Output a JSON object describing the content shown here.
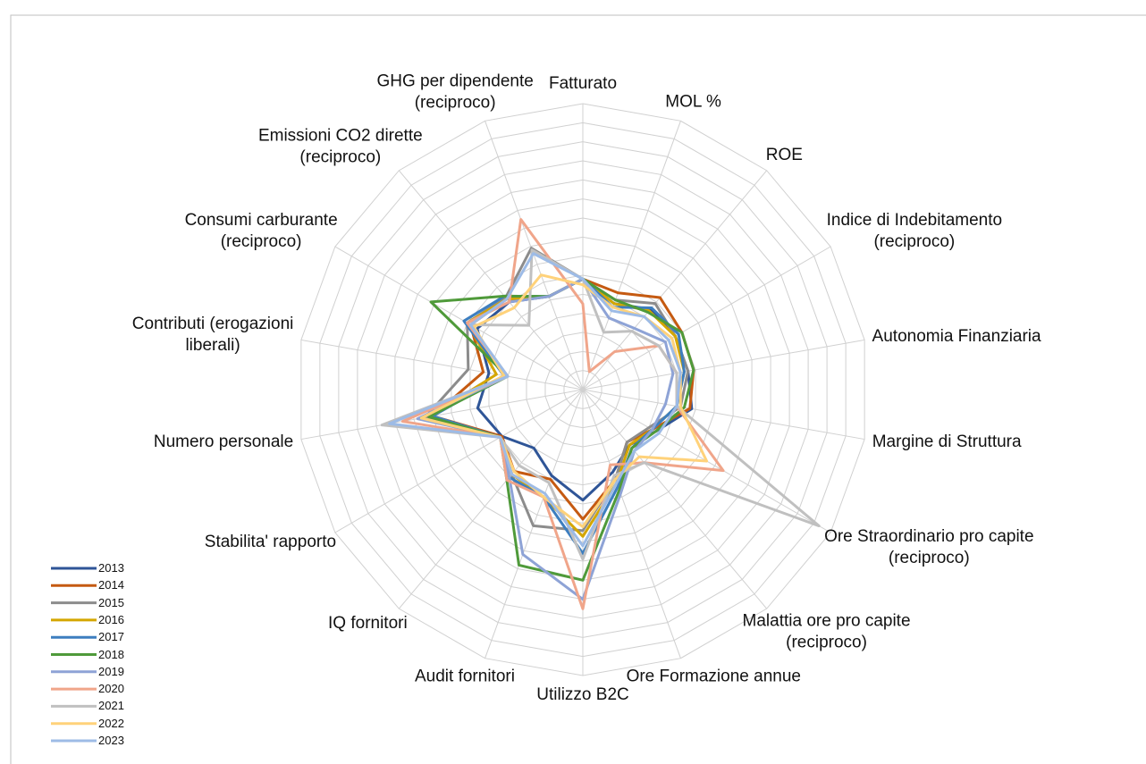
{
  "chart_data": {
    "type": "radar",
    "categories": [
      "Fatturato",
      "MOL %",
      "ROE",
      "Indice di Indebitamento\n(reciproco)",
      "Autonomia Finanziaria",
      "Margine di Struttura",
      "Ore Straordinario pro capite\n(reciproco)",
      "Malattia ore pro capite\n(reciproco)",
      "Ore Formazione annue",
      "Utilizzo B2C",
      "Audit fornitori",
      "IQ fornitori",
      "Stabilita' rapporto",
      "Numero personale",
      "Contributi (erogazioni\nliberali)",
      "Consumi carburante\n(reciproco)",
      "Emissioni CO2 dirette\n(reciproco)",
      "GHG per dipendente\n(reciproco)"
    ],
    "ylim": [
      0,
      15
    ],
    "yticks": [
      1,
      2,
      3,
      4,
      5,
      6,
      7,
      8,
      9,
      10,
      11,
      12,
      13,
      14,
      15
    ],
    "grid": true,
    "legend": "bottom-left",
    "series": [
      {
        "name": "2013",
        "color": "#2f5597",
        "values": [
          5.8,
          4.8,
          5.5,
          5.6,
          5.6,
          5.8,
          4.4,
          3.8,
          4.6,
          5.8,
          4.8,
          4.0,
          4.9,
          5.6,
          5.0,
          6.4,
          6.0,
          5.2
        ]
      },
      {
        "name": "2014",
        "color": "#c55a11",
        "values": [
          5.8,
          5.4,
          6.3,
          6.0,
          5.9,
          5.7,
          4.2,
          3.6,
          5.0,
          6.8,
          5.0,
          5.6,
          4.9,
          8.0,
          5.3,
          6.8,
          6.2,
          5.2
        ]
      },
      {
        "name": "2015",
        "color": "#8c8c8c",
        "values": [
          5.8,
          5.0,
          5.9,
          5.6,
          5.6,
          5.2,
          4.0,
          3.6,
          5.0,
          7.4,
          7.6,
          5.8,
          5.0,
          8.4,
          6.1,
          7.0,
          6.3,
          7.9
        ]
      },
      {
        "name": "2016",
        "color": "#d4a600",
        "values": [
          5.8,
          4.8,
          5.4,
          5.6,
          5.4,
          5.0,
          4.2,
          3.8,
          5.2,
          7.7,
          6.0,
          5.8,
          5.0,
          8.2,
          4.6,
          7.0,
          6.2,
          5.2
        ]
      },
      {
        "name": "2017",
        "color": "#3d7ebf",
        "values": [
          5.8,
          4.6,
          5.6,
          5.8,
          5.4,
          5.0,
          4.2,
          4.0,
          5.4,
          8.6,
          6.0,
          6.0,
          5.0,
          8.0,
          4.2,
          7.2,
          6.4,
          5.2
        ]
      },
      {
        "name": "2018",
        "color": "#4f9a3a",
        "values": [
          5.8,
          5.0,
          5.3,
          6.0,
          5.9,
          5.4,
          4.4,
          4.0,
          5.6,
          10.0,
          9.8,
          6.2,
          5.0,
          8.2,
          4.0,
          9.2,
          6.4,
          5.2
        ]
      },
      {
        "name": "2019",
        "color": "#8ea3d6",
        "values": [
          5.8,
          4.0,
          4.2,
          5.0,
          4.8,
          4.4,
          4.2,
          4.2,
          5.8,
          11.0,
          9.2,
          6.0,
          5.0,
          8.8,
          4.0,
          7.0,
          6.0,
          5.2
        ]
      },
      {
        "name": "2020",
        "color": "#f0a58a",
        "values": [
          4.5,
          1.0,
          2.6,
          4.6,
          5.0,
          5.0,
          8.5,
          5.0,
          4.2,
          11.5,
          6.0,
          6.2,
          5.0,
          9.6,
          4.0,
          7.0,
          6.0,
          9.5
        ]
      },
      {
        "name": "2021",
        "color": "#c0c0c0",
        "values": [
          5.8,
          3.2,
          4.0,
          4.6,
          5.0,
          5.0,
          14.3,
          5.0,
          4.8,
          8.9,
          5.2,
          5.2,
          5.0,
          10.7,
          4.0,
          6.8,
          4.4,
          7.8
        ]
      },
      {
        "name": "2022",
        "color": "#ffd27a",
        "values": [
          5.5,
          4.6,
          5.0,
          5.4,
          5.2,
          5.2,
          7.5,
          4.6,
          5.0,
          7.2,
          6.0,
          5.6,
          5.0,
          8.6,
          4.2,
          6.6,
          5.6,
          6.4
        ]
      },
      {
        "name": "2023",
        "color": "#9dbbe6",
        "values": [
          5.8,
          4.4,
          5.0,
          5.2,
          5.2,
          5.0,
          4.6,
          4.2,
          5.2,
          8.2,
          5.8,
          5.8,
          5.0,
          10.3,
          4.0,
          6.8,
          6.2,
          7.6
        ]
      }
    ]
  }
}
